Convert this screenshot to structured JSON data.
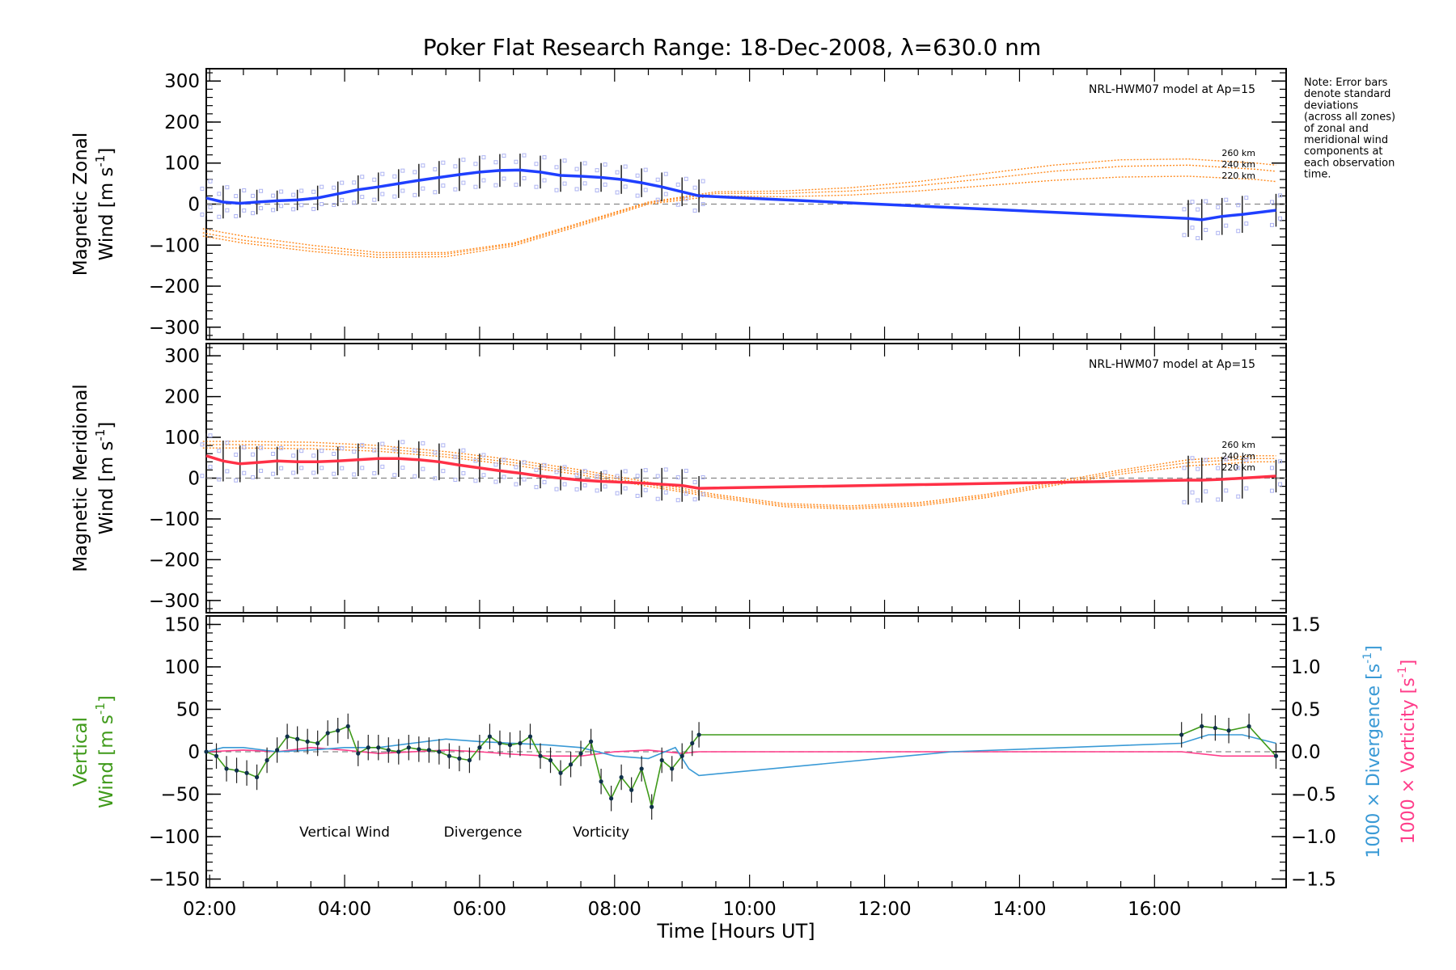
{
  "title": "Poker Flat Research Range: 18-Dec-2008, λ=630.0 nm",
  "note_lines": [
    "Note: Error bars",
    "denote standard",
    "deviations",
    "(across all zones)",
    "of zonal and",
    "meridional wind",
    "components at",
    "each observation",
    "time."
  ],
  "colors": {
    "zonal": "#1f3fff",
    "meridional": "#ff3046",
    "model": "#ff8a1e",
    "vertical": "#3f9a1a",
    "divergence": "#3a9ad6",
    "vorticity": "#ff3d8a",
    "errbar": "#222222",
    "zone": "#aeb4f2"
  },
  "chart_data": [
    {
      "type": "line",
      "panel": "zonal",
      "ylabel_line1": "Magnetic Zonal",
      "ylabel_line2": "Wind [m s",
      "ylabel_sup": "-1",
      "ylabel_end": "]",
      "ylim": [
        -330,
        330
      ],
      "yticks": [
        300,
        200,
        100,
        0,
        -100,
        -200,
        -300
      ],
      "yticklabels": [
        "300",
        "200",
        "100",
        "0",
        "−100",
        "−200",
        "−300"
      ],
      "model_label": "NRL-HWM07 model at Ap=15",
      "model_series": [
        {
          "name": "260 km",
          "x": [
            1.9,
            2.5,
            3.5,
            4.5,
            5.5,
            6.5,
            7.5,
            8.5,
            9.5,
            10.5,
            11.5,
            12.5,
            13.5,
            14.5,
            15.5,
            16.5,
            17.5,
            17.8
          ],
          "y": [
            -60,
            -78,
            -100,
            -118,
            -118,
            -95,
            -45,
            5,
            30,
            32,
            40,
            55,
            75,
            95,
            108,
            110,
            100,
            95
          ]
        },
        {
          "name": "240 km",
          "x": [
            1.9,
            2.5,
            3.5,
            4.5,
            5.5,
            6.5,
            7.5,
            8.5,
            9.5,
            10.5,
            11.5,
            12.5,
            13.5,
            14.5,
            15.5,
            16.5,
            17.5,
            17.8
          ],
          "y": [
            -70,
            -88,
            -108,
            -124,
            -122,
            -98,
            -48,
            3,
            26,
            26,
            32,
            45,
            62,
            80,
            92,
            95,
            85,
            80
          ]
        },
        {
          "name": "220 km",
          "x": [
            1.9,
            2.5,
            3.5,
            4.5,
            5.5,
            6.5,
            7.5,
            8.5,
            9.5,
            10.5,
            11.5,
            12.5,
            13.5,
            14.5,
            15.5,
            16.5,
            17.5,
            17.8
          ],
          "y": [
            -78,
            -95,
            -115,
            -130,
            -128,
            -102,
            -52,
            0,
            20,
            18,
            22,
            32,
            45,
            58,
            66,
            68,
            60,
            55
          ]
        }
      ],
      "series_name": "Zonal wind",
      "x": [
        1.95,
        2.2,
        2.45,
        2.7,
        3.0,
        3.3,
        3.6,
        3.9,
        4.2,
        4.5,
        4.8,
        5.1,
        5.4,
        5.7,
        6.0,
        6.3,
        6.6,
        6.9,
        7.2,
        7.5,
        7.8,
        8.1,
        8.4,
        8.7,
        9.0,
        9.25,
        16.5,
        16.7,
        17.0,
        17.3,
        17.8
      ],
      "y": [
        15,
        5,
        2,
        5,
        8,
        10,
        15,
        25,
        35,
        42,
        50,
        58,
        65,
        72,
        78,
        82,
        83,
        78,
        70,
        68,
        65,
        60,
        52,
        42,
        30,
        20,
        -35,
        -38,
        -30,
        -25,
        -15
      ],
      "err": [
        45,
        40,
        35,
        30,
        25,
        25,
        30,
        30,
        35,
        35,
        35,
        40,
        40,
        40,
        40,
        40,
        40,
        40,
        40,
        35,
        35,
        35,
        35,
        35,
        35,
        40,
        45,
        50,
        45,
        45,
        40
      ]
    },
    {
      "type": "line",
      "panel": "meridional",
      "ylabel_line1": "Magnetic Meridional",
      "ylabel_line2": "Wind [m s",
      "ylabel_sup": "-1",
      "ylabel_end": "]",
      "ylim": [
        -330,
        330
      ],
      "yticks": [
        300,
        200,
        100,
        0,
        -100,
        -200,
        -300
      ],
      "yticklabels": [
        "300",
        "200",
        "100",
        "0",
        "−100",
        "−200",
        "−300"
      ],
      "model_label": "NRL-HWM07 model at Ap=15",
      "model_series": [
        {
          "name": "260 km",
          "x": [
            1.9,
            2.5,
            3.5,
            4.5,
            5.5,
            6.5,
            7.5,
            8.5,
            9.5,
            10.5,
            11.5,
            12.5,
            13.5,
            14.5,
            15.5,
            16.5,
            17.5,
            17.8
          ],
          "y": [
            90,
            90,
            88,
            80,
            65,
            45,
            20,
            -10,
            -40,
            -62,
            -68,
            -60,
            -40,
            -10,
            20,
            45,
            55,
            55
          ]
        },
        {
          "name": "240 km",
          "x": [
            1.9,
            2.5,
            3.5,
            4.5,
            5.5,
            6.5,
            7.5,
            8.5,
            9.5,
            10.5,
            11.5,
            12.5,
            13.5,
            14.5,
            15.5,
            16.5,
            17.5,
            17.8
          ],
          "y": [
            82,
            82,
            80,
            73,
            58,
            38,
            14,
            -15,
            -44,
            -66,
            -72,
            -64,
            -44,
            -14,
            15,
            38,
            48,
            48
          ]
        },
        {
          "name": "220 km",
          "x": [
            1.9,
            2.5,
            3.5,
            4.5,
            5.5,
            6.5,
            7.5,
            8.5,
            9.5,
            10.5,
            11.5,
            12.5,
            13.5,
            14.5,
            15.5,
            16.5,
            17.5,
            17.8
          ],
          "y": [
            74,
            74,
            72,
            66,
            52,
            32,
            8,
            -20,
            -48,
            -70,
            -76,
            -68,
            -48,
            -18,
            10,
            30,
            40,
            40
          ]
        }
      ],
      "series_name": "Meridional wind",
      "x": [
        1.95,
        2.2,
        2.45,
        2.7,
        3.0,
        3.3,
        3.6,
        3.9,
        4.2,
        4.5,
        4.8,
        5.1,
        5.4,
        5.7,
        6.0,
        6.3,
        6.6,
        6.9,
        7.2,
        7.5,
        7.8,
        8.1,
        8.4,
        8.7,
        9.0,
        9.25,
        16.5,
        16.7,
        17.0,
        17.3,
        17.8
      ],
      "y": [
        55,
        42,
        35,
        38,
        42,
        40,
        40,
        42,
        45,
        48,
        48,
        45,
        40,
        32,
        25,
        18,
        12,
        5,
        0,
        -5,
        -8,
        -10,
        -12,
        -15,
        -18,
        -25,
        -5,
        -5,
        -3,
        0,
        5
      ],
      "err": [
        55,
        50,
        45,
        40,
        35,
        30,
        30,
        35,
        40,
        40,
        45,
        45,
        45,
        40,
        35,
        30,
        30,
        30,
        30,
        25,
        25,
        30,
        35,
        40,
        40,
        30,
        60,
        55,
        55,
        50,
        40
      ]
    },
    {
      "type": "line",
      "panel": "vertical",
      "ylabel_line1": "Vertical",
      "ylabel_line2": "Wind [m s",
      "ylabel_sup": "-1",
      "ylabel_end": "]",
      "ylim": [
        -160,
        160
      ],
      "yticks": [
        150,
        100,
        50,
        0,
        -50,
        -100,
        -150
      ],
      "yticklabels": [
        "150",
        "100",
        "50",
        "0",
        "−50",
        "−100",
        "−150"
      ],
      "y2lim": [
        -1.6,
        1.6
      ],
      "y2ticks": [
        1.5,
        1.0,
        0.5,
        0.0,
        -0.5,
        -1.0,
        -1.5
      ],
      "y2ticklabels": [
        "1.5",
        "1.0",
        "0.5",
        "0.0",
        "−0.5",
        "−1.0",
        "−1.5"
      ],
      "y2label_div": "1000 × Divergence [s",
      "y2label_vor": "1000 × Vorticity [s",
      "legend": [
        "Vertical Wind",
        "Divergence",
        "Vorticity"
      ],
      "vertical": {
        "x": [
          1.95,
          2.1,
          2.25,
          2.4,
          2.55,
          2.7,
          2.85,
          3.0,
          3.15,
          3.3,
          3.45,
          3.6,
          3.75,
          3.9,
          4.05,
          4.2,
          4.35,
          4.5,
          4.65,
          4.8,
          4.95,
          5.1,
          5.25,
          5.4,
          5.55,
          5.7,
          5.85,
          6.0,
          6.15,
          6.3,
          6.45,
          6.6,
          6.75,
          6.9,
          7.05,
          7.2,
          7.35,
          7.5,
          7.65,
          7.8,
          7.95,
          8.1,
          8.25,
          8.4,
          8.55,
          8.7,
          8.85,
          9.0,
          9.15,
          9.25,
          16.4,
          16.7,
          16.9,
          17.1,
          17.4,
          17.8
        ],
        "y": [
          0,
          -5,
          -20,
          -22,
          -25,
          -30,
          -10,
          2,
          18,
          15,
          12,
          10,
          22,
          25,
          30,
          -2,
          5,
          5,
          2,
          0,
          5,
          3,
          2,
          0,
          -5,
          -8,
          -10,
          5,
          18,
          10,
          8,
          10,
          18,
          -5,
          -10,
          -25,
          -15,
          -2,
          12,
          -35,
          -55,
          -30,
          -45,
          -20,
          -65,
          -10,
          -20,
          -5,
          10,
          20,
          20,
          30,
          28,
          25,
          30,
          -5
        ],
        "err": [
          15,
          15,
          15,
          15,
          15,
          15,
          15,
          15,
          15,
          15,
          15,
          15,
          15,
          15,
          15,
          15,
          15,
          15,
          15,
          15,
          15,
          15,
          15,
          15,
          15,
          15,
          15,
          15,
          15,
          15,
          15,
          15,
          15,
          15,
          15,
          15,
          15,
          15,
          15,
          15,
          15,
          15,
          15,
          15,
          15,
          15,
          15,
          15,
          15,
          15,
          15,
          15,
          15,
          15,
          15,
          15
        ]
      },
      "divergence": {
        "x": [
          1.95,
          2.2,
          2.5,
          3.0,
          3.5,
          4.0,
          4.5,
          5.0,
          5.5,
          6.0,
          6.5,
          7.0,
          7.5,
          8.0,
          8.5,
          8.9,
          9.1,
          9.25,
          13.0,
          16.4,
          16.8,
          17.3,
          17.8
        ],
        "y": [
          0,
          0.05,
          0.05,
          0.0,
          0.02,
          0.05,
          0.05,
          0.1,
          0.15,
          0.12,
          0.1,
          0.08,
          0.05,
          -0.05,
          -0.08,
          0.05,
          -0.2,
          -0.28,
          0.0,
          0.1,
          0.2,
          0.2,
          0.1
        ]
      },
      "vorticity": {
        "x": [
          1.95,
          2.5,
          3.0,
          3.5,
          4.0,
          4.5,
          5.0,
          5.5,
          6.0,
          6.5,
          7.0,
          7.5,
          8.0,
          8.5,
          9.0,
          9.25,
          13.0,
          16.4,
          17.0,
          17.8
        ],
        "y": [
          0,
          0.02,
          0.0,
          0.05,
          0.02,
          -0.02,
          0.0,
          0.02,
          0.0,
          -0.03,
          -0.05,
          -0.05,
          0.0,
          0.02,
          -0.02,
          0.0,
          0.0,
          0.0,
          -0.05,
          -0.05
        ]
      }
    }
  ],
  "xaxis": {
    "label": "Time [Hours UT]",
    "xlim": [
      1.95,
      17.95
    ],
    "ticks": [
      2,
      4,
      6,
      8,
      10,
      12,
      14,
      16
    ],
    "ticklabels": [
      "02:00",
      "04:00",
      "06:00",
      "08:00",
      "10:00",
      "12:00",
      "14:00",
      "16:00"
    ]
  }
}
